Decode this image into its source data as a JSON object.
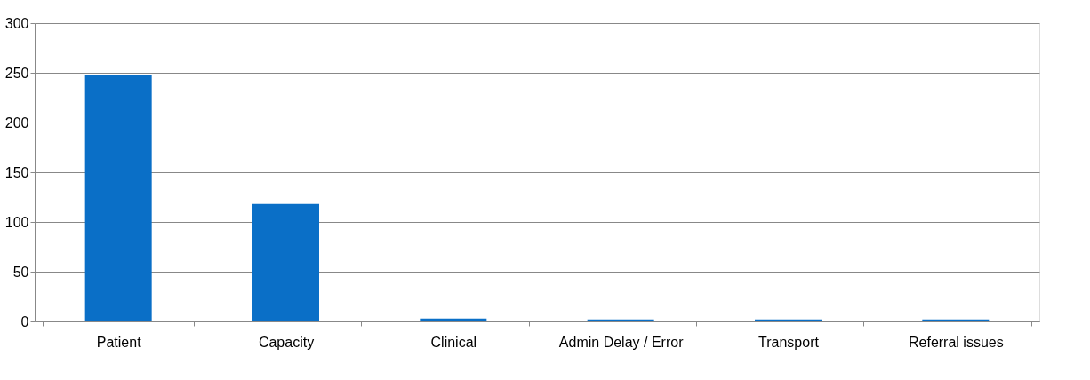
{
  "chart_data": {
    "type": "bar",
    "categories": [
      "Patient",
      "Capacity",
      "Clinical",
      "Admin Delay / Error",
      "Transport",
      "Referral issues"
    ],
    "values": [
      248,
      118,
      3,
      2,
      2,
      2
    ],
    "color": "#0a6fc7",
    "ylim": [
      0,
      300
    ],
    "yticks": [
      0,
      50,
      100,
      150,
      200,
      250,
      300
    ],
    "grid": "y"
  }
}
